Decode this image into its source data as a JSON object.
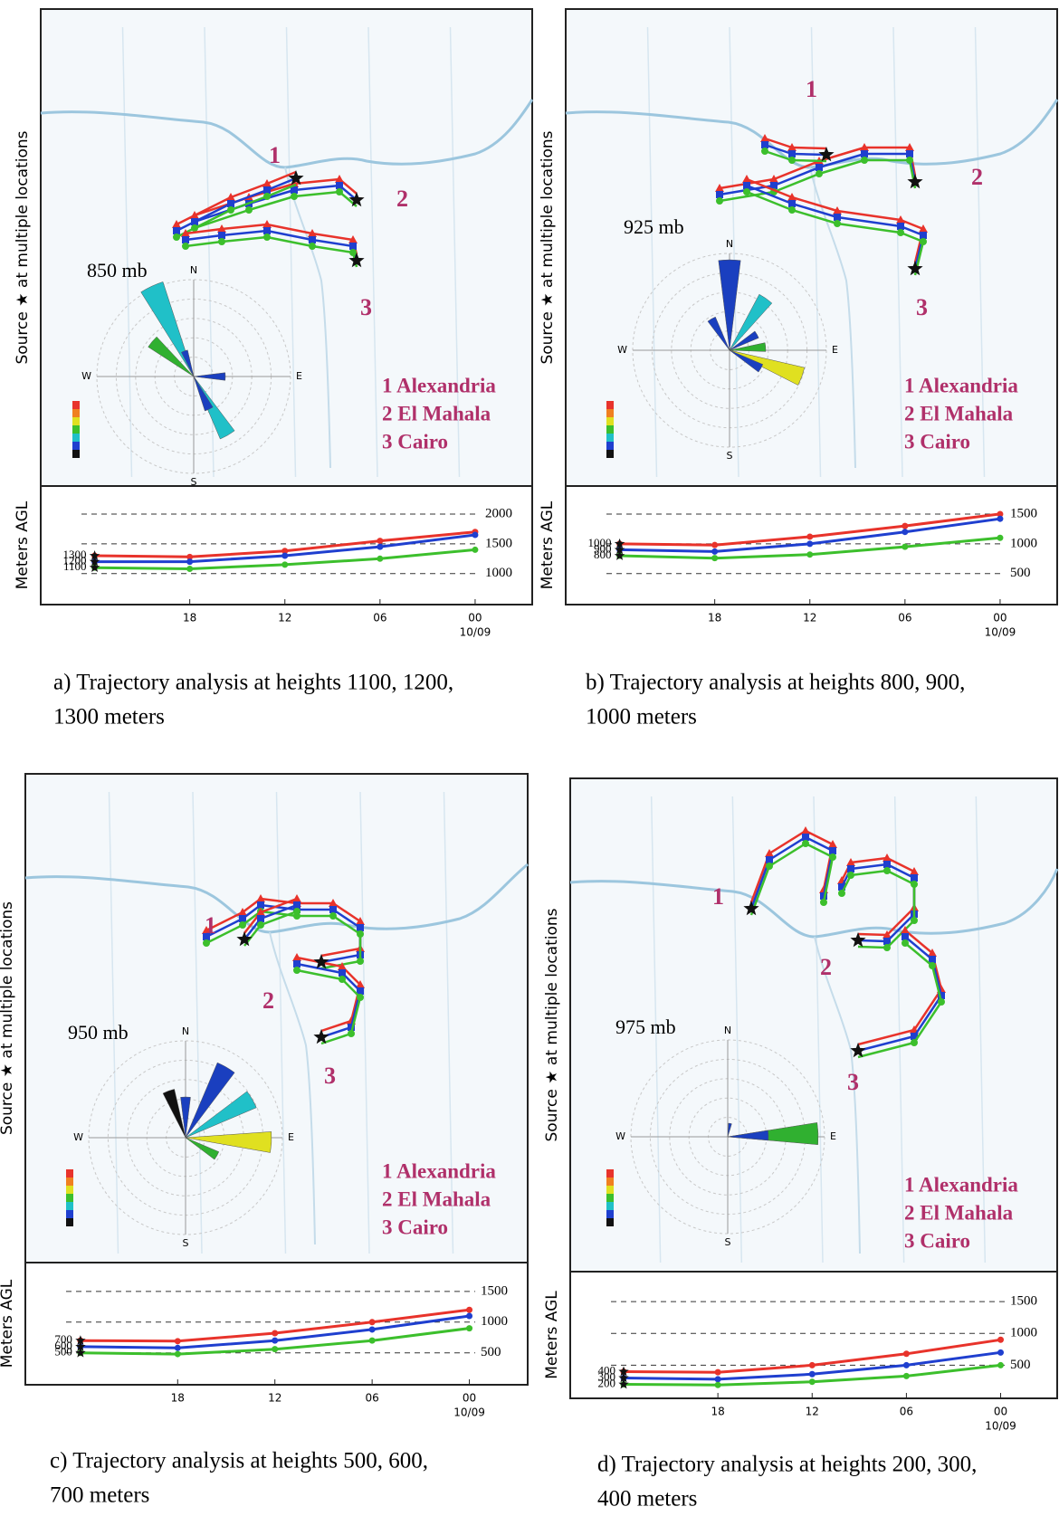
{
  "chart_data": [
    {
      "type": "line",
      "y_label": "Meters AGL",
      "x": [
        -24,
        -18,
        -12,
        -6,
        0
      ],
      "xlim": [
        -27.4,
        3.6
      ],
      "xticks": [
        {
          "value": -18,
          "label": "18"
        },
        {
          "value": -12,
          "label": "12"
        },
        {
          "value": -6,
          "label": "06"
        },
        {
          "value": 0,
          "label": "00"
        }
      ],
      "date_label": "10/09",
      "ylim": [
        480,
        2470
      ],
      "yticks": [
        1000,
        1500,
        2000
      ],
      "grid": true,
      "start_heights": [
        1300,
        1200,
        1100
      ],
      "series": [
        {
          "color": "#e8332b",
          "values": [
            1300,
            1280,
            1380,
            1550,
            1700
          ]
        },
        {
          "color": "#1f3fcf",
          "values": [
            1200,
            1200,
            1300,
            1450,
            1650
          ]
        },
        {
          "color": "#3cbf2c",
          "values": [
            1100,
            1080,
            1150,
            1250,
            1400
          ]
        }
      ]
    },
    {
      "type": "line",
      "y_label": "Meters AGL",
      "x": [
        -24,
        -18,
        -12,
        -6,
        0
      ],
      "xlim": [
        -27.4,
        3.6
      ],
      "xticks": [
        {
          "value": -18,
          "label": "18"
        },
        {
          "value": -12,
          "label": "12"
        },
        {
          "value": -6,
          "label": "06"
        },
        {
          "value": 0,
          "label": "00"
        }
      ],
      "date_label": "10/09",
      "ylim": [
        -20,
        1970
      ],
      "yticks": [
        500,
        1000,
        1500
      ],
      "grid": true,
      "start_heights": [
        1000,
        900,
        800
      ],
      "series": [
        {
          "color": "#e8332b",
          "values": [
            1000,
            980,
            1120,
            1300,
            1500
          ]
        },
        {
          "color": "#1f3fcf",
          "values": [
            900,
            870,
            1000,
            1200,
            1420
          ]
        },
        {
          "color": "#3cbf2c",
          "values": [
            800,
            760,
            820,
            950,
            1100
          ]
        }
      ]
    },
    {
      "type": "line",
      "y_label": "Meters AGL",
      "x": [
        -24,
        -18,
        -12,
        -6,
        0
      ],
      "xlim": [
        -27.4,
        3.6
      ],
      "xticks": [
        {
          "value": -18,
          "label": "18"
        },
        {
          "value": -12,
          "label": "12"
        },
        {
          "value": -6,
          "label": "06"
        },
        {
          "value": 0,
          "label": "00"
        }
      ],
      "date_label": "10/09",
      "ylim": [
        -20,
        1970
      ],
      "yticks": [
        500,
        1000,
        1500
      ],
      "grid": true,
      "start_heights": [
        700,
        600,
        500
      ],
      "series": [
        {
          "color": "#e8332b",
          "values": [
            700,
            690,
            820,
            1000,
            1200
          ]
        },
        {
          "color": "#1f3fcf",
          "values": [
            600,
            580,
            700,
            880,
            1100
          ]
        },
        {
          "color": "#3cbf2c",
          "values": [
            500,
            480,
            560,
            700,
            900
          ]
        }
      ]
    },
    {
      "type": "line",
      "y_label": "Meters AGL",
      "x": [
        -24,
        -18,
        -12,
        -6,
        0
      ],
      "xlim": [
        -27.4,
        3.6
      ],
      "xticks": [
        {
          "value": -18,
          "label": "18"
        },
        {
          "value": -12,
          "label": "12"
        },
        {
          "value": -6,
          "label": "06"
        },
        {
          "value": 0,
          "label": "00"
        }
      ],
      "date_label": "10/09",
      "ylim": [
        -20,
        1970
      ],
      "yticks": [
        500,
        1000,
        1500
      ],
      "grid": true,
      "start_heights": [
        400,
        300,
        200
      ],
      "series": [
        {
          "color": "#e8332b",
          "values": [
            400,
            390,
            500,
            680,
            900
          ]
        },
        {
          "color": "#1f3fcf",
          "values": [
            300,
            280,
            360,
            500,
            700
          ]
        },
        {
          "color": "#3cbf2c",
          "values": [
            200,
            190,
            240,
            330,
            500
          ]
        }
      ]
    }
  ],
  "panels": [
    {
      "side_label": "Source ★ at multiple locations",
      "pressure_label": "850 mb",
      "site_numbers": [
        "1",
        "2",
        "3"
      ],
      "compass": [
        "N",
        "E",
        "S",
        "W"
      ],
      "legend": [
        "1 Alexandria",
        "2 El Mahala",
        "3 Cairo"
      ],
      "caption": [
        "a) Trajectory analysis at heights 1100, 1200,",
        "1300 meters"
      ]
    },
    {
      "side_label": "Source ★ at multiple locations",
      "pressure_label": "925 mb",
      "site_numbers": [
        "1",
        "2",
        "3"
      ],
      "compass": [
        "N",
        "E",
        "S",
        "W"
      ],
      "legend": [
        "1 Alexandria",
        "2 El Mahala",
        "3 Cairo"
      ],
      "caption": [
        "b) Trajectory analysis at heights 800, 900,",
        "1000 meters"
      ]
    },
    {
      "side_label": "Source ★ at multiple locations",
      "pressure_label": "950 mb",
      "site_numbers": [
        "1",
        "2",
        "3"
      ],
      "compass": [
        "N",
        "E",
        "S",
        "W"
      ],
      "legend": [
        "1 Alexandria",
        "2 El Mahala",
        "3 Cairo"
      ],
      "caption": [
        "c) Trajectory analysis at heights 500, 600,",
        "700 meters"
      ]
    },
    {
      "side_label": "Source ★ at multiple locations",
      "pressure_label": "975 mb",
      "site_numbers": [
        "1",
        "2",
        "3"
      ],
      "compass": [
        "N",
        "E",
        "S",
        "W"
      ],
      "legend": [
        "1 Alexandria",
        "2 El Mahala",
        "3 Cairo"
      ],
      "caption": [
        "d) Trajectory analysis at heights 200, 300,",
        "400 meters"
      ]
    }
  ]
}
